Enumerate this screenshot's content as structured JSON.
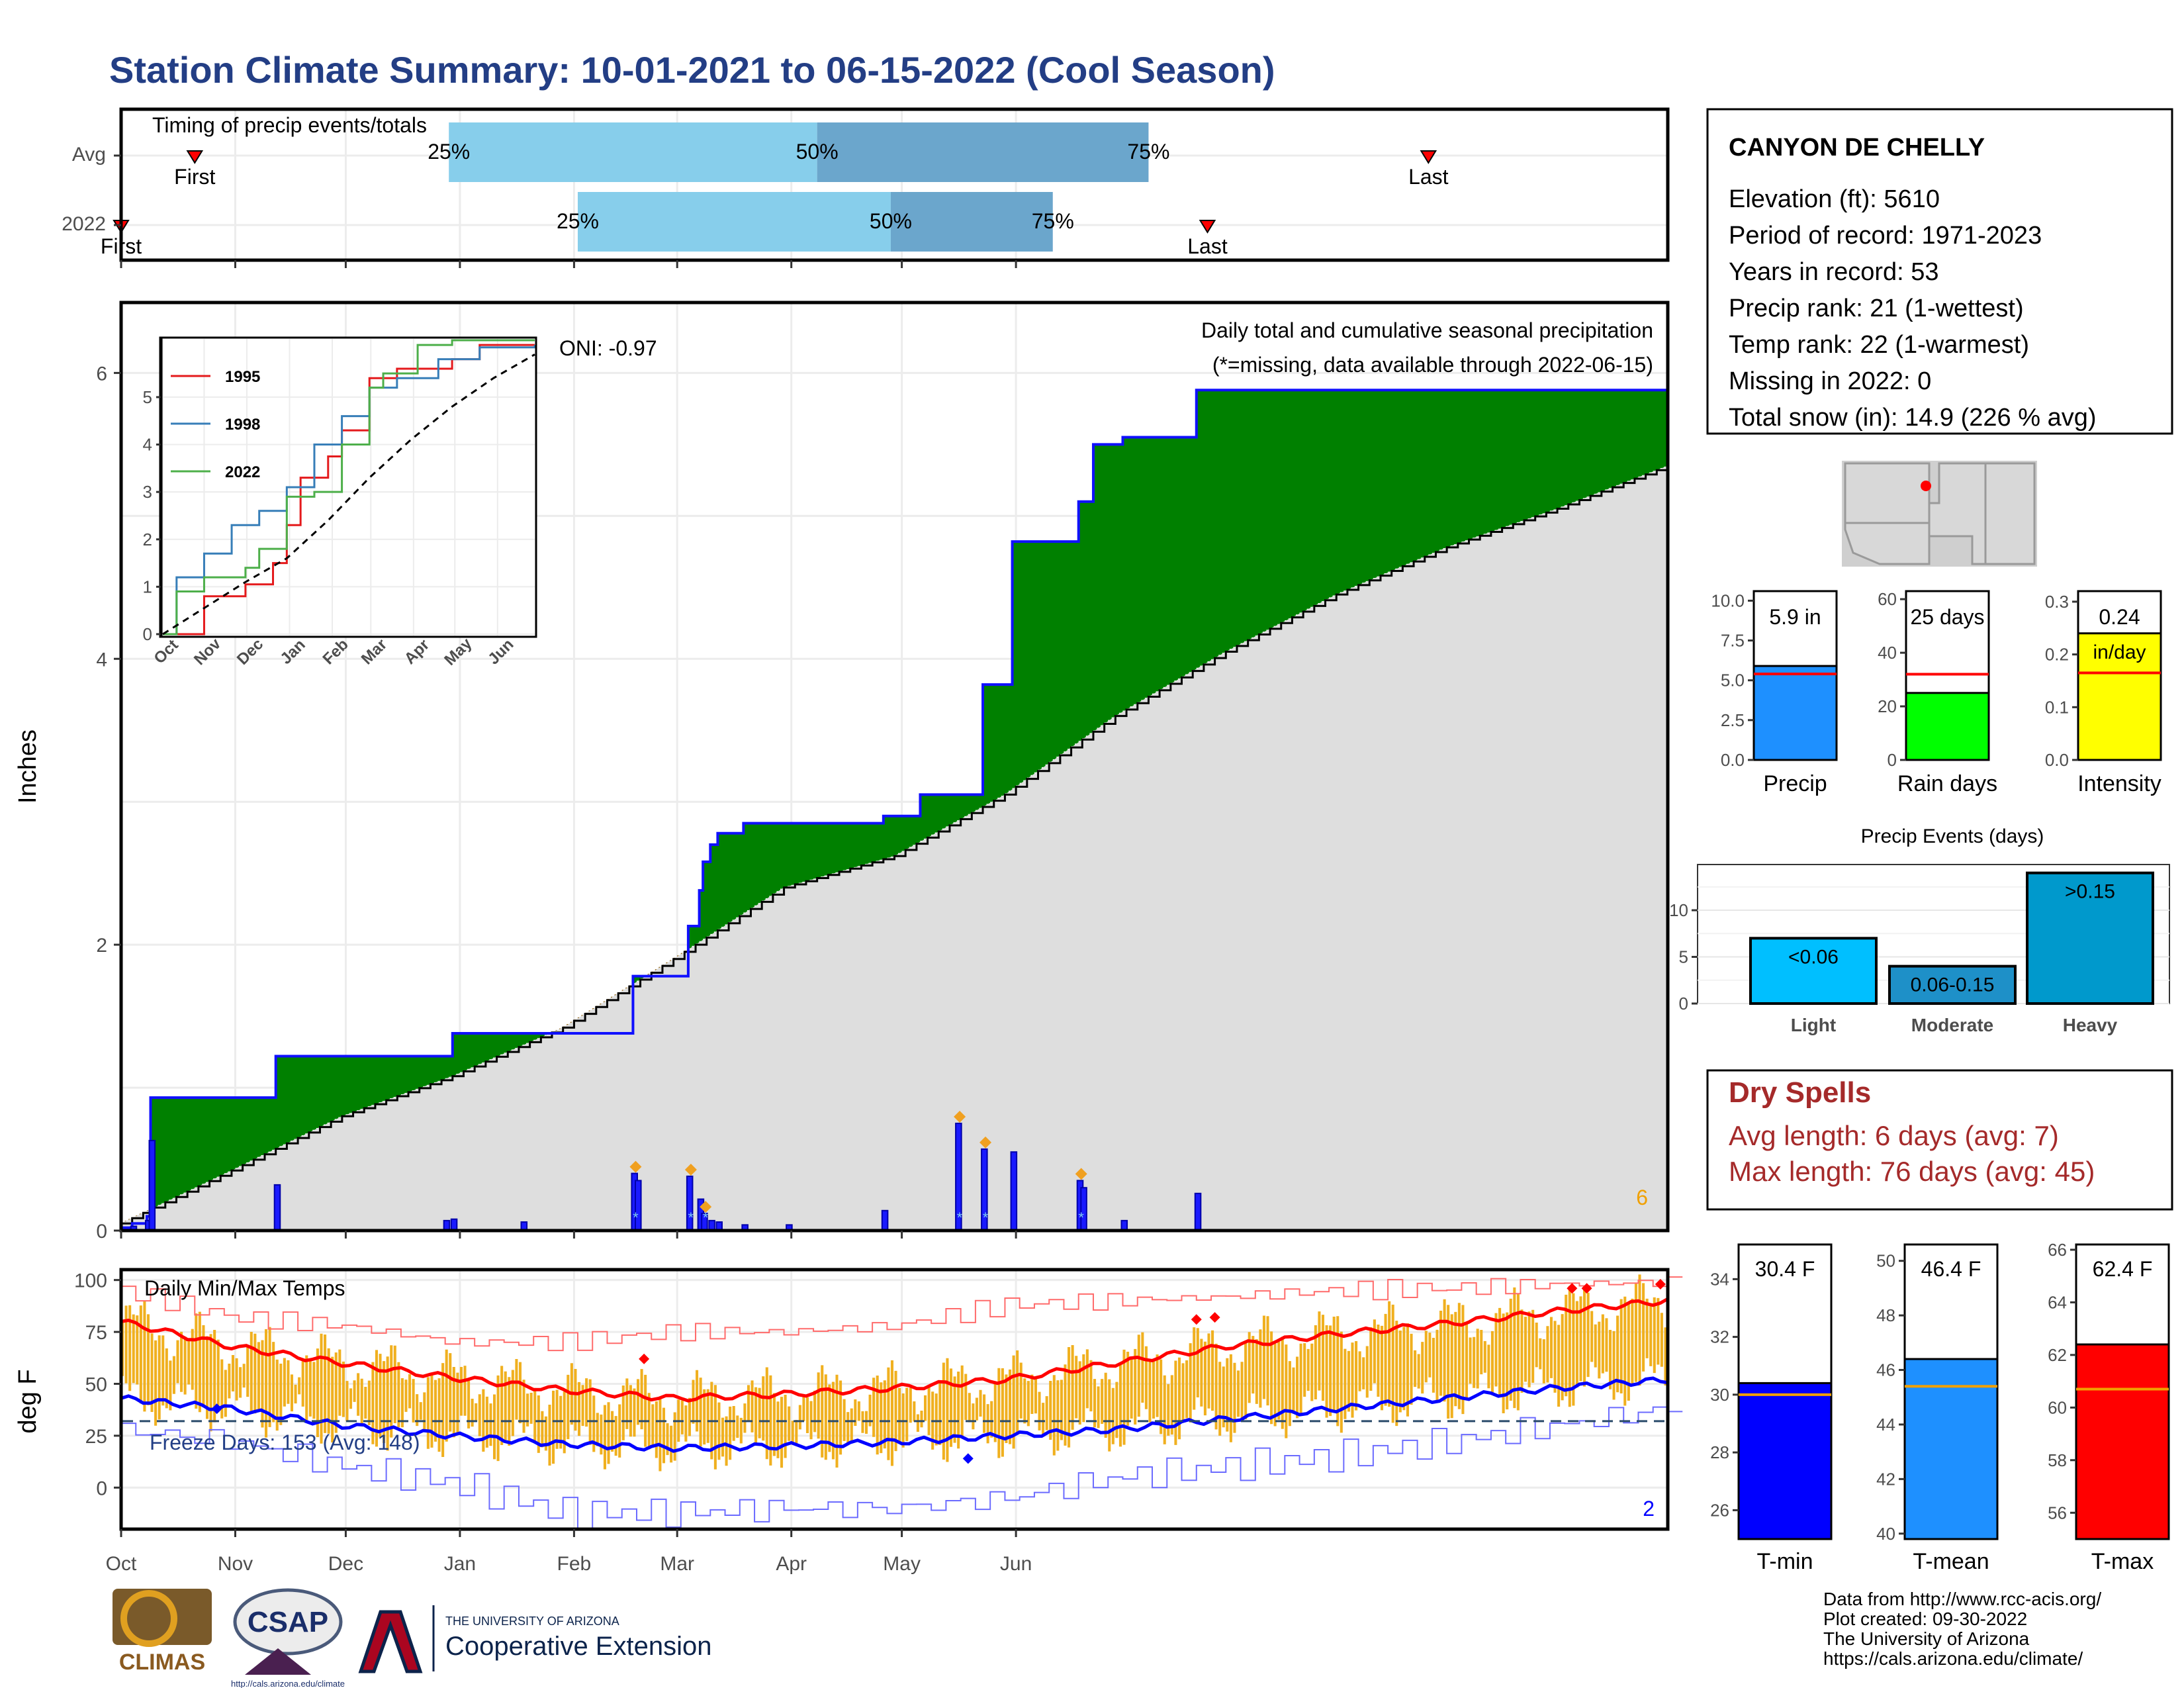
{
  "title": "Station Climate Summary: 10-01-2021 to 06-15-2022 (Cool Season)",
  "colors": {
    "title": "#233e85",
    "green": "#008000",
    "brown": "#8b5a00",
    "blue_line": "#1010ff",
    "avg_fill": "#dedede",
    "q_light": "#87ceeb",
    "q_dark": "#6ba6cc",
    "orange_bar": "#f0b01f",
    "tmin": "#0000ff",
    "tmean": "#1e90ff",
    "tmax": "#ff0000",
    "dry_red": "#a52a2a"
  },
  "timing": {
    "title": "Timing of precip events/totals",
    "rows": [
      {
        "label": "Avg",
        "first": "First",
        "q25": "25%",
        "q50": "50%",
        "q75": "75%",
        "last": "Last"
      },
      {
        "label": "2022",
        "first": "First",
        "q25": "25%",
        "q50": "50%",
        "q75": "75%",
        "last": "Last"
      }
    ]
  },
  "station": {
    "name": "CANYON DE CHELLY",
    "lines": [
      "Elevation (ft): 5610",
      "Period of record: 1971-2023",
      "Years in record: 53",
      "Precip rank: 21 (1-wettest)",
      "Temp rank: 22 (1-warmest)",
      "Missing in 2022: 0",
      "Total snow (in): 14.9 (226 % avg)"
    ]
  },
  "precip_panel": {
    "ylabel": "Inches",
    "oni": "ONI: -0.97",
    "caption": "Daily total and cumulative seasonal precipitation",
    "missing_note": "(*=missing, data available through 2022-06-15)",
    "snow_count": "6",
    "yticks": [
      "0",
      "2",
      "4",
      "6"
    ]
  },
  "temp_panel": {
    "ylabel": "deg F",
    "caption": "Daily Min/Max Temps",
    "freeze": "Freeze Days: 153 (Avg: 148)",
    "record_count": "2",
    "yticks": [
      "0",
      "25",
      "50",
      "75",
      "100"
    ]
  },
  "months": [
    "Oct",
    "Nov",
    "Dec",
    "Jan",
    "Feb",
    "Mar",
    "Apr",
    "May",
    "Jun"
  ],
  "inset": {
    "months": [
      "Oct",
      "Nov",
      "Dec",
      "Jan",
      "Feb",
      "Mar",
      "Apr",
      "May",
      "Jun"
    ],
    "yticks": [
      "0",
      "1",
      "2",
      "3",
      "4",
      "5"
    ],
    "legend": [
      "1995",
      "1998",
      "2022"
    ]
  },
  "gauges": [
    {
      "label": "Precip",
      "value_text": "5.9 in",
      "ticks": [
        "0.0",
        "2.5",
        "5.0",
        "7.5",
        "10.0"
      ]
    },
    {
      "label": "Rain days",
      "value_text": "25 days",
      "ticks": [
        "0",
        "20",
        "40",
        "60"
      ]
    },
    {
      "label": "Intensity",
      "value_text": "0.24",
      "unit_text": "in/day",
      "ticks": [
        "0.0",
        "0.1",
        "0.2",
        "0.3"
      ]
    }
  ],
  "events": {
    "title": "Precip Events (days)",
    "yticks": [
      "0",
      "5",
      "10"
    ],
    "bars": [
      {
        "category": "Light",
        "label": "<0.06"
      },
      {
        "category": "Moderate",
        "label": "0.06-0.15"
      },
      {
        "category": "Heavy",
        "label": ">0.15"
      }
    ]
  },
  "dry": {
    "title": "Dry Spells",
    "avg": "Avg length: 6 days (avg: 7)",
    "max": "Max length: 76 days (avg: 45)"
  },
  "temp_gauges": [
    {
      "label": "T-min",
      "value_text": "30.4 F",
      "ticks": [
        "26",
        "28",
        "30",
        "32",
        "34"
      ]
    },
    {
      "label": "T-mean",
      "value_text": "46.4 F",
      "ticks": [
        "40",
        "42",
        "44",
        "46",
        "48",
        "50"
      ]
    },
    {
      "label": "T-max",
      "value_text": "62.4 F",
      "ticks": [
        "56",
        "58",
        "60",
        "62",
        "64",
        "66"
      ]
    }
  ],
  "footer": {
    "lines": [
      "Data from http://www.rcc-acis.org/",
      "Plot created: 09-30-2022",
      "The University of Arizona",
      "https://cals.arizona.edu/climate/"
    ]
  },
  "logos": {
    "climas": "CLIMAS",
    "csap": "CSAP",
    "csap_url": "http://cals.arizona.edu/climate",
    "ua_top": "THE UNIVERSITY OF ARIZONA",
    "ua_bottom": "Cooperative Extension"
  },
  "chart_data": [
    {
      "type": "bar",
      "name": "timing",
      "rows": [
        "Avg",
        "2022"
      ],
      "first_day": [
        20,
        0
      ],
      "q25_day": [
        89,
        124
      ],
      "q50_day": [
        189,
        209
      ],
      "q75_day": [
        279,
        253
      ],
      "last_day": [
        355,
        295
      ],
      "xlim": [
        0,
        420
      ]
    },
    {
      "type": "area",
      "name": "cumulative_precip",
      "xlabel": "",
      "ylabel": "Inches",
      "ylim": [
        0,
        6.4
      ],
      "x_days_2022": [
        0,
        3,
        7,
        8,
        42,
        77,
        90,
        101,
        112,
        139,
        140,
        154,
        157,
        158,
        160,
        162,
        169,
        180,
        207,
        217,
        227,
        234,
        242,
        244,
        260,
        264,
        272,
        278,
        284,
        292,
        300,
        420
      ],
      "cumulative_2022": [
        0.02,
        0.05,
        0.1,
        0.93,
        1.22,
        1.22,
        1.38,
        1.38,
        1.38,
        1.78,
        1.78,
        2.13,
        2.38,
        2.58,
        2.7,
        2.78,
        2.85,
        2.85,
        2.9,
        3.05,
        3.05,
        3.82,
        4.82,
        4.82,
        5.1,
        5.5,
        5.55,
        5.55,
        5.55,
        5.88,
        5.88,
        5.88
      ],
      "avg_days": [
        0,
        30,
        60,
        90,
        120,
        150,
        180,
        210,
        240,
        270,
        300,
        330,
        360,
        390,
        420
      ],
      "avg_cumulative": [
        0.05,
        0.42,
        0.8,
        1.08,
        1.42,
        1.9,
        2.4,
        2.62,
        3.05,
        3.6,
        4.05,
        4.45,
        4.78,
        5.05,
        5.35
      ],
      "daily_days": [
        3,
        7,
        8,
        42,
        88,
        90,
        109,
        139,
        140,
        154,
        157,
        158,
        160,
        162,
        169,
        181,
        207,
        227,
        234,
        242,
        260,
        261,
        272,
        292
      ],
      "daily_precip": [
        0.03,
        0.07,
        0.63,
        0.32,
        0.07,
        0.08,
        0.06,
        0.4,
        0.35,
        0.38,
        0.22,
        0.12,
        0.07,
        0.06,
        0.04,
        0.04,
        0.14,
        0.75,
        0.57,
        0.55,
        0.35,
        0.3,
        0.07,
        0.26
      ],
      "snow_marker_days": [
        139,
        154,
        158,
        227,
        234,
        260
      ]
    },
    {
      "type": "line",
      "name": "inset_cumulative",
      "series": [
        {
          "name": "1995",
          "x": [
            0,
            10,
            30,
            60,
            80,
            90,
            100,
            120,
            130,
            150,
            170,
            210,
            230,
            270
          ],
          "y": [
            0,
            0,
            0.8,
            1.05,
            1.5,
            2.3,
            3.3,
            3.75,
            4.3,
            5.4,
            5.6,
            5.8,
            6.1,
            6.1
          ]
        },
        {
          "name": "1998",
          "x": [
            0,
            10,
            30,
            50,
            70,
            90,
            110,
            130,
            150,
            170,
            200,
            230,
            270
          ],
          "y": [
            0,
            1.2,
            1.7,
            2.3,
            2.6,
            3.1,
            4.0,
            4.6,
            5.2,
            5.4,
            5.8,
            6.05,
            6.1
          ]
        },
        {
          "name": "2022",
          "x": [
            0,
            10,
            30,
            60,
            70,
            90,
            110,
            130,
            150,
            160,
            185,
            210,
            270
          ],
          "y": [
            0,
            0.9,
            1.2,
            1.4,
            1.8,
            2.9,
            3.0,
            4.0,
            5.2,
            5.5,
            6.1,
            6.2,
            6.2
          ]
        },
        {
          "name": "Average",
          "x": [
            0,
            30,
            60,
            90,
            120,
            150,
            180,
            210,
            240,
            270
          ],
          "y": [
            0,
            0.55,
            1.1,
            1.6,
            2.4,
            3.3,
            4.1,
            4.8,
            5.4,
            5.9
          ]
        }
      ],
      "ylim": [
        0,
        6
      ]
    },
    {
      "type": "line",
      "name": "daily_temps",
      "ylabel": "deg F",
      "ylim": [
        -20,
        105
      ],
      "mean_max_days": [
        0,
        30,
        60,
        90,
        120,
        150,
        180,
        210,
        240,
        270,
        300,
        330,
        360,
        390,
        420
      ],
      "mean_max": [
        80,
        68,
        60,
        53,
        47,
        43,
        45,
        48,
        52,
        60,
        68,
        74,
        79,
        85,
        90
      ],
      "mean_min_days": [
        0,
        30,
        60,
        90,
        120,
        150,
        180,
        210,
        240,
        270,
        300,
        330,
        360,
        390,
        420
      ],
      "mean_min": [
        43,
        38,
        30,
        25,
        21,
        19,
        20,
        22,
        25,
        28,
        33,
        38,
        43,
        48,
        52
      ],
      "record_max": [
        95,
        82,
        78,
        70,
        70,
        75,
        75,
        78,
        88,
        90,
        92,
        95,
        96,
        98,
        99
      ],
      "record_min": [
        28,
        22,
        10,
        2,
        -12,
        -12,
        -10,
        -10,
        -5,
        5,
        10,
        15,
        22,
        30,
        38
      ],
      "freeze_line": 32
    },
    {
      "type": "bar",
      "name": "season_gauges",
      "categories": [
        "Precip",
        "Rain days",
        "Intensity"
      ],
      "values": [
        5.9,
        25,
        0.24
      ],
      "averages": [
        5.4,
        32,
        0.165
      ],
      "ylims": [
        [
          0,
          10.6
        ],
        [
          0,
          63
        ],
        [
          0,
          0.32
        ]
      ]
    },
    {
      "type": "bar",
      "name": "precip_events",
      "categories": [
        "Light",
        "Moderate",
        "Heavy"
      ],
      "values": [
        7,
        4,
        14
      ],
      "ylim": [
        0,
        14.9
      ]
    },
    {
      "type": "bar",
      "name": "temp_gauges",
      "categories": [
        "T-min",
        "T-mean",
        "T-max"
      ],
      "values": [
        30.4,
        46.4,
        62.4
      ],
      "averages": [
        30.0,
        45.4,
        60.7
      ],
      "ylims": [
        [
          25.0,
          35.2
        ],
        [
          39.8,
          50.6
        ],
        [
          55.0,
          66.2
        ]
      ]
    }
  ]
}
